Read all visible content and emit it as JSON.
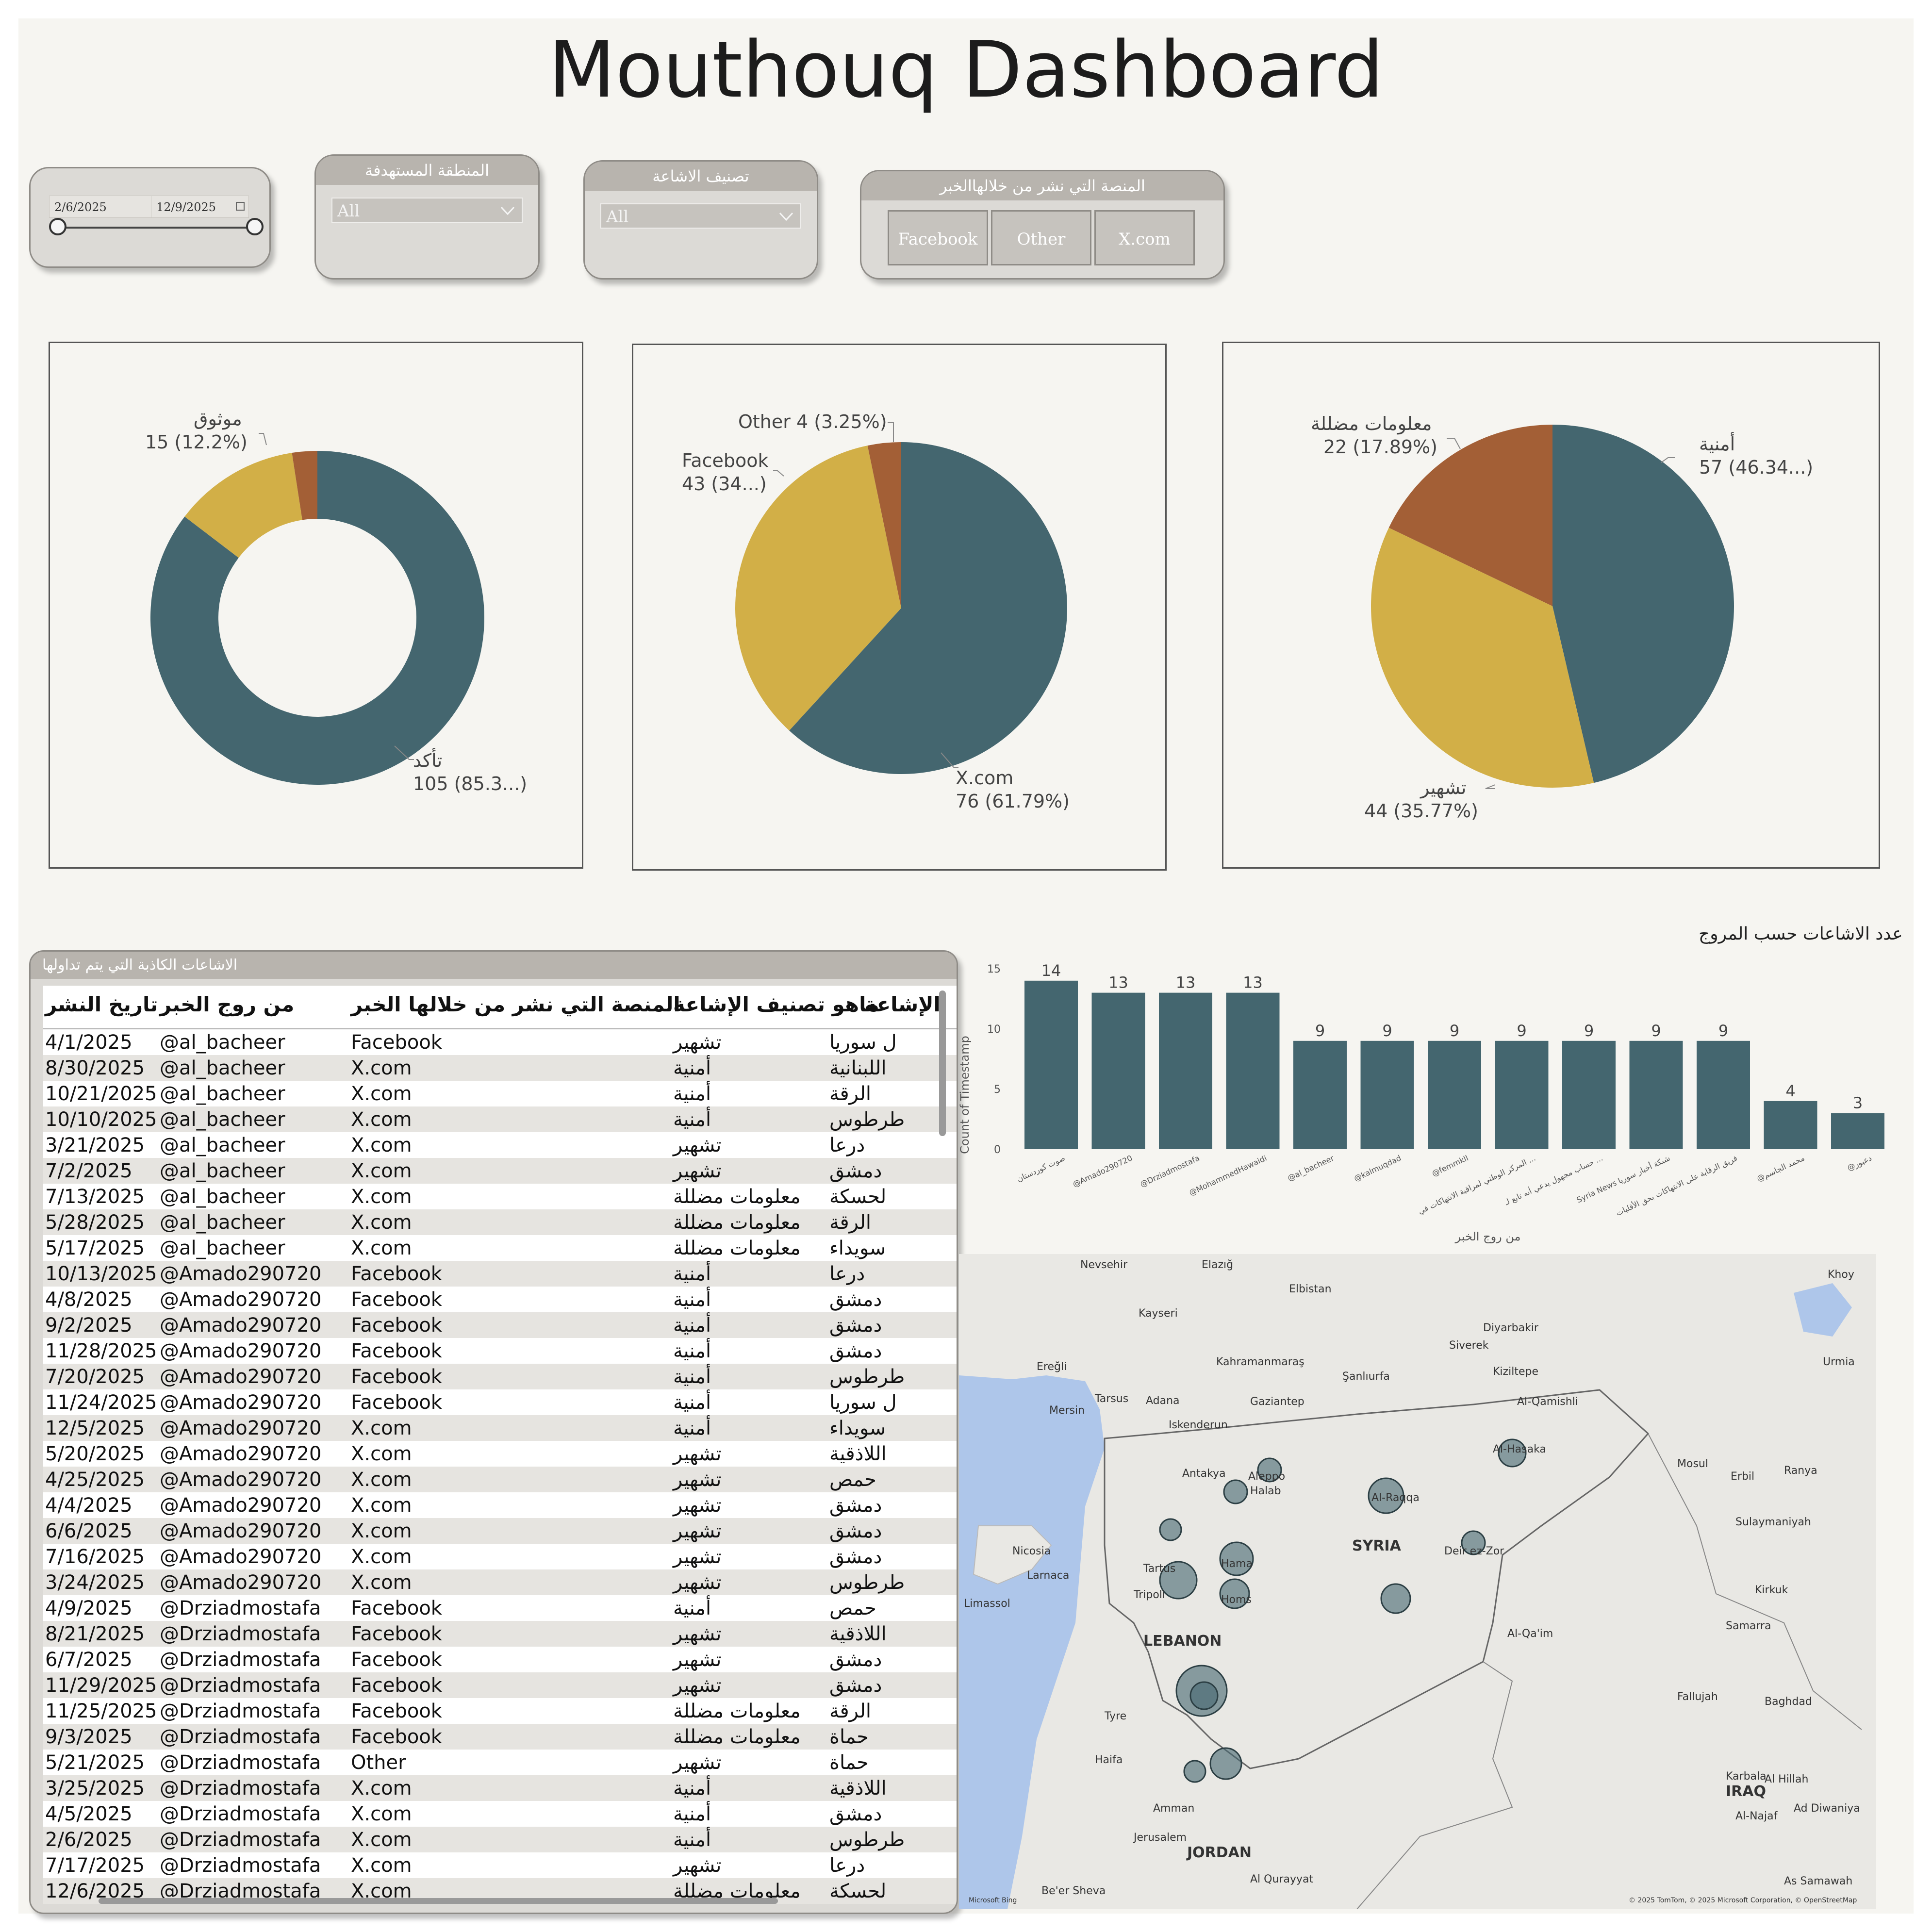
{
  "title": "Mouthouq Dashboard",
  "filters": {
    "date": {
      "start": "2/6/2025",
      "end": "12/9/2025"
    },
    "region": {
      "header": "المنطقة المستهدفة",
      "value": "All"
    },
    "category": {
      "header": "تصنيف الاشاعة",
      "value": "All"
    },
    "platform": {
      "header": "المنصة التي نشر من خلالهاالخبر",
      "buttons": [
        "Facebook",
        "Other",
        "X.com"
      ]
    }
  },
  "charts": {
    "donut_verification": {
      "type": "donut",
      "slices": [
        {
          "label": "تأكد",
          "value": 105,
          "text": "105 (85.3...)",
          "color": "#44666f"
        },
        {
          "label": "موثوق",
          "value": 15,
          "text": "15 (12.2%)",
          "color": "#d2af47"
        },
        {
          "label": "",
          "value": 3,
          "text": "",
          "color": "#a35f36"
        }
      ]
    },
    "pie_platform": {
      "type": "pie",
      "slices": [
        {
          "label": "X.com",
          "value": 76,
          "text": "76 (61.79%)",
          "color": "#44666f"
        },
        {
          "label": "Facebook",
          "value": 43,
          "text": "43 (34...)",
          "color": "#d2af47"
        },
        {
          "label": "Other",
          "value": 4,
          "text": "Other 4 (3.25%)",
          "color": "#a35f36"
        }
      ]
    },
    "pie_category": {
      "type": "pie",
      "slices": [
        {
          "label": "أمنية",
          "value": 57,
          "text": "57 (46.34...)",
          "color": "#44666f"
        },
        {
          "label": "تشهير",
          "value": 44,
          "text": "44 (35.77%)",
          "color": "#d2af47"
        },
        {
          "label": "معلومات مضللة",
          "value": 22,
          "text": "22 (17.89%)",
          "color": "#a35f36"
        }
      ]
    }
  },
  "chart_data": {
    "type": "bar",
    "title": "عدد الاشاعات حسب المروج",
    "xlabel": "من روج الخبر",
    "ylabel": "Count of Timestamp",
    "ylim": [
      0,
      15
    ],
    "yticks": [
      0,
      5,
      10,
      15
    ],
    "color": "#44666f",
    "categories": [
      "صوت كوردستان",
      "@Amado290720",
      "@Drziadmostafa",
      "@MohammedHawaidi",
      "@al_bacheer",
      "@kalmuqdad",
      "@femmkll",
      "المركز الوطني لمراقبة الانتهاكات في ...",
      "حساب مجهول يدعي أنه تابع لـ ...",
      "Syria News شبكة أخبار سوريا",
      "فريق الرقابة على الانتهاكات بحق الأقليات",
      "@محمد الجاسم",
      "@دعبور"
    ],
    "values": [
      14,
      13,
      13,
      13,
      9,
      9,
      9,
      9,
      9,
      9,
      9,
      4,
      3
    ]
  },
  "table": {
    "header_bar": "الاشاعات الكاذبة التي يتم تداولها",
    "columns": [
      "تاريخ النشر",
      "من روج الخبر",
      "المنصة التي نشر من خلالها الخبر",
      "ماهو تصنيف الإشاعة",
      "الإشاعة"
    ],
    "rows": [
      [
        "4/1/2025",
        "@al_bacheer",
        "Facebook",
        "تشهير",
        "ل سوريا"
      ],
      [
        "8/30/2025",
        "@al_bacheer",
        "X.com",
        "أمنية",
        "اللبنانية"
      ],
      [
        "10/21/2025",
        "@al_bacheer",
        "X.com",
        "أمنية",
        "الرقة"
      ],
      [
        "10/10/2025",
        "@al_bacheer",
        "X.com",
        "أمنية",
        "طرطوس"
      ],
      [
        "3/21/2025",
        "@al_bacheer",
        "X.com",
        "تشهير",
        "درعا"
      ],
      [
        "7/2/2025",
        "@al_bacheer",
        "X.com",
        "تشهير",
        "دمشق"
      ],
      [
        "7/13/2025",
        "@al_bacheer",
        "X.com",
        "معلومات مضللة",
        "لحسكة"
      ],
      [
        "5/28/2025",
        "@al_bacheer",
        "X.com",
        "معلومات مضللة",
        "الرقة"
      ],
      [
        "5/17/2025",
        "@al_bacheer",
        "X.com",
        "معلومات مضللة",
        "سويداء"
      ],
      [
        "10/13/2025",
        "@Amado290720",
        "Facebook",
        "أمنية",
        "درعا"
      ],
      [
        "4/8/2025",
        "@Amado290720",
        "Facebook",
        "أمنية",
        "دمشق"
      ],
      [
        "9/2/2025",
        "@Amado290720",
        "Facebook",
        "أمنية",
        "دمشق"
      ],
      [
        "11/28/2025",
        "@Amado290720",
        "Facebook",
        "أمنية",
        "دمشق"
      ],
      [
        "7/20/2025",
        "@Amado290720",
        "Facebook",
        "أمنية",
        "طرطوس"
      ],
      [
        "11/24/2025",
        "@Amado290720",
        "Facebook",
        "أمنية",
        "ل سوريا"
      ],
      [
        "12/5/2025",
        "@Amado290720",
        "X.com",
        "أمنية",
        "سويداء"
      ],
      [
        "5/20/2025",
        "@Amado290720",
        "X.com",
        "تشهير",
        "اللاذقية"
      ],
      [
        "4/25/2025",
        "@Amado290720",
        "X.com",
        "تشهير",
        "حمص"
      ],
      [
        "4/4/2025",
        "@Amado290720",
        "X.com",
        "تشهير",
        "دمشق"
      ],
      [
        "6/6/2025",
        "@Amado290720",
        "X.com",
        "تشهير",
        "دمشق"
      ],
      [
        "7/16/2025",
        "@Amado290720",
        "X.com",
        "تشهير",
        "دمشق"
      ],
      [
        "3/24/2025",
        "@Amado290720",
        "X.com",
        "تشهير",
        "طرطوس"
      ],
      [
        "4/9/2025",
        "@Drziadmostafa",
        "Facebook",
        "أمنية",
        "حمص"
      ],
      [
        "8/21/2025",
        "@Drziadmostafa",
        "Facebook",
        "تشهير",
        "اللاذقية"
      ],
      [
        "6/7/2025",
        "@Drziadmostafa",
        "Facebook",
        "تشهير",
        "دمشق"
      ],
      [
        "11/29/2025",
        "@Drziadmostafa",
        "Facebook",
        "تشهير",
        "دمشق"
      ],
      [
        "11/25/2025",
        "@Drziadmostafa",
        "Facebook",
        "معلومات مضللة",
        "الرقة"
      ],
      [
        "9/3/2025",
        "@Drziadmostafa",
        "Facebook",
        "معلومات مضللة",
        "حماة"
      ],
      [
        "5/21/2025",
        "@Drziadmostafa",
        "Other",
        "تشهير",
        "حماة"
      ],
      [
        "3/25/2025",
        "@Drziadmostafa",
        "X.com",
        "أمنية",
        "اللاذقية"
      ],
      [
        "4/5/2025",
        "@Drziadmostafa",
        "X.com",
        "أمنية",
        "دمشق"
      ],
      [
        "2/6/2025",
        "@Drziadmostafa",
        "X.com",
        "أمنية",
        "طرطوس"
      ],
      [
        "7/17/2025",
        "@Drziadmostafa",
        "X.com",
        "تشهير",
        "درعا"
      ],
      [
        "12/6/2025",
        "@Drziadmostafa",
        "X.com",
        "معلومات مضللة",
        "لحسكة"
      ]
    ]
  },
  "map": {
    "labels": [
      "Nevsehir",
      "Elazığ",
      "Khoy",
      "Kayseri",
      "Elbistan",
      "Diyarbakir",
      "Ereğli",
      "Kahramanmaraş",
      "Siverek",
      "Urmia",
      "Şanlıurfa",
      "Kiziltepe",
      "Mersin",
      "Tarsus",
      "Adana",
      "Gaziantep",
      "Al-Qamishli",
      "Iskenderun",
      "Al-Hasaka",
      "Antakya",
      "Aleppo",
      "Halab",
      "Mosul",
      "Erbil",
      "Ranya",
      "Al-Raqqa",
      "Nicosia",
      "Larnaca",
      "Limassol",
      "SYRIA",
      "Deir ez-Zor",
      "Sulaymaniyah",
      "Tartus",
      "Tripoli",
      "Hama",
      "Homs",
      "Kirkuk",
      "LEBANON",
      "Al-Qa'im",
      "Samarra",
      "Tyre",
      "Haifa",
      "Fallujah",
      "Baghdad",
      "IRAQ",
      "Amman",
      "Jerusalem",
      "JORDAN",
      "Al Hillah",
      "Karbala",
      "Ad Diwaniya",
      "Al-Najaf",
      "Al Qurayyat",
      "As Samawah",
      "Be'er Sheva"
    ],
    "copyright": "© 2025 TomTom, © 2025 Microsoft Corporation, © OpenStreetMap",
    "bing": "Microsoft Bing",
    "bubble_color": "#44666f"
  }
}
